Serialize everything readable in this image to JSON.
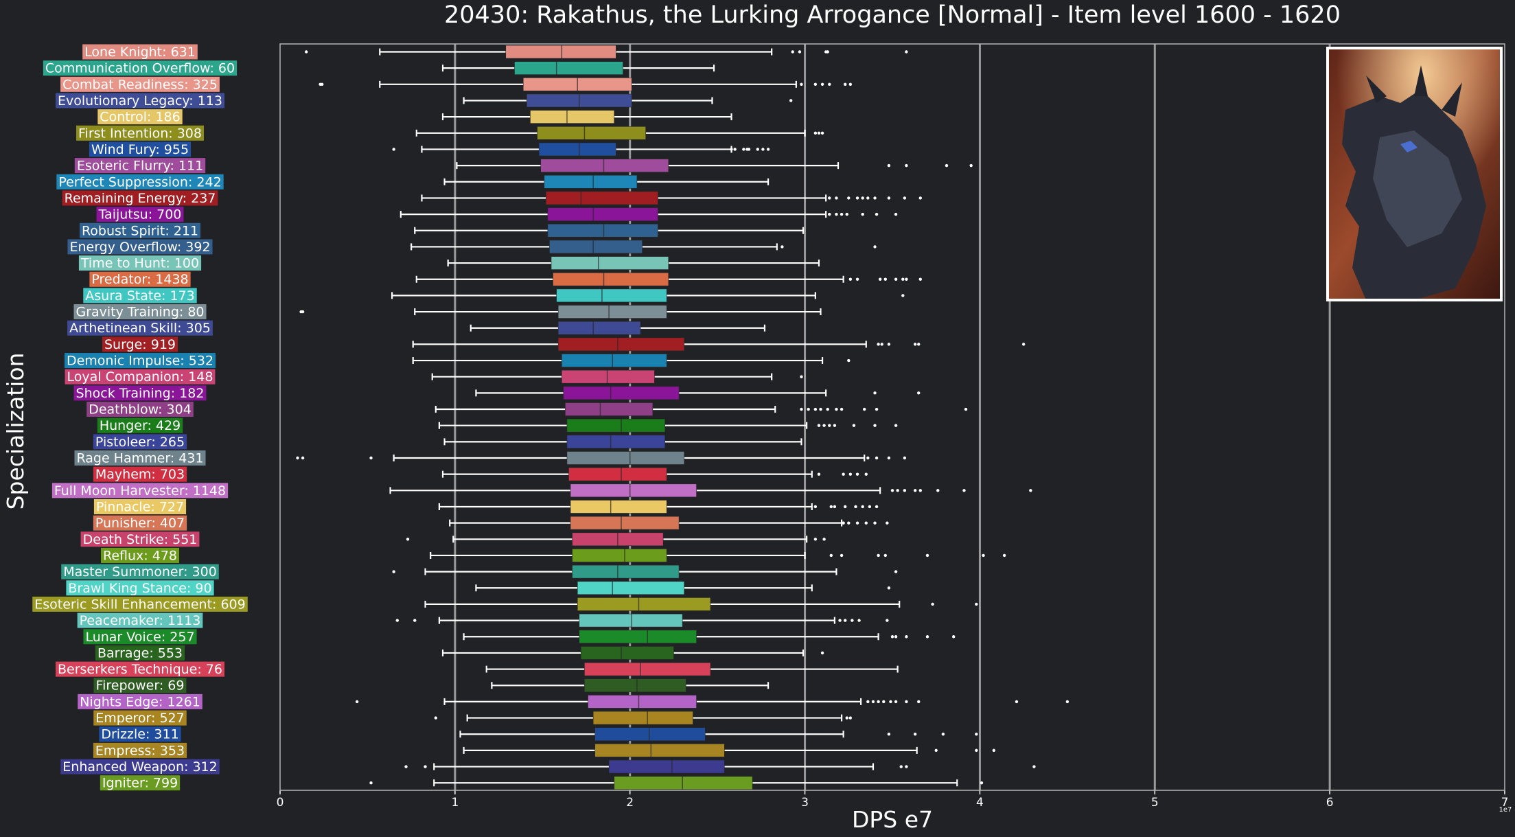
{
  "chart_data": {
    "type": "boxplot",
    "title": "20430: Rakathus, the Lurking Arrogance [Normal] - Item level 1600 - 1620",
    "xlabel": "DPS e7",
    "ylabel": "Specialization",
    "x_tick_labels": [
      "0",
      "1",
      "2",
      "3",
      "4",
      "5",
      "6",
      "7"
    ],
    "x_offset_text": "1e7",
    "xlim": [
      0,
      7
    ],
    "orientation": "horizontal",
    "grid": "vertical lines at 1, 2, 3, 4, 5, 6",
    "image": "boss portrait (dragon) in top-right corner",
    "series": [
      {
        "label": "Lone Knight: 631",
        "color": "#e28b80",
        "whislo": 0.57,
        "q1": 1.29,
        "med": 1.61,
        "q3": 1.92,
        "whishi": 2.81,
        "fliers": [
          0.15,
          2.93,
          2.97,
          3.12,
          3.13,
          3.58
        ]
      },
      {
        "label": "Communication Overflow: 60",
        "color": "#2ca58d",
        "whislo": 0.93,
        "q1": 1.34,
        "med": 1.58,
        "q3": 1.96,
        "whishi": 2.48,
        "fliers": []
      },
      {
        "label": "Combat Readiness: 325",
        "color": "#e8958a",
        "whislo": 0.57,
        "q1": 1.39,
        "med": 1.7,
        "q3": 2.01,
        "whishi": 2.95,
        "fliers": [
          0.23,
          0.24,
          2.98,
          3.06,
          3.1,
          3.14,
          3.23,
          3.26
        ]
      },
      {
        "label": "Evolutionary Legacy: 113",
        "color": "#3f4d96",
        "whislo": 1.05,
        "q1": 1.41,
        "med": 1.71,
        "q3": 2.01,
        "whishi": 2.47,
        "fliers": [
          2.92
        ]
      },
      {
        "label": "Control: 186",
        "color": "#e6c767",
        "whislo": 0.93,
        "q1": 1.43,
        "med": 1.64,
        "q3": 1.91,
        "whishi": 2.58,
        "fliers": []
      },
      {
        "label": "First Intention: 308",
        "color": "#8e8e1c",
        "whislo": 0.78,
        "q1": 1.47,
        "med": 1.74,
        "q3": 2.09,
        "whishi": 3.0,
        "fliers": [
          3.06,
          3.08,
          3.1
        ]
      },
      {
        "label": "Wind Fury: 955",
        "color": "#1f4f9e",
        "whislo": 0.81,
        "q1": 1.48,
        "med": 1.71,
        "q3": 1.92,
        "whishi": 2.58,
        "fliers": [
          0.65,
          2.58,
          2.6,
          2.65,
          2.67,
          2.68,
          2.73,
          2.76,
          2.79
        ]
      },
      {
        "label": "Esoteric Flurry: 111",
        "color": "#a04c9c",
        "whislo": 1.01,
        "q1": 1.49,
        "med": 1.85,
        "q3": 2.22,
        "whishi": 3.19,
        "fliers": [
          3.48,
          3.58,
          3.81,
          3.95
        ]
      },
      {
        "label": "Perfect Suppression: 242",
        "color": "#1e87b8",
        "whislo": 0.94,
        "q1": 1.51,
        "med": 1.79,
        "q3": 2.04,
        "whishi": 2.79,
        "fliers": []
      },
      {
        "label": "Remaining Energy: 237",
        "color": "#a01e22",
        "whislo": 0.81,
        "q1": 1.52,
        "med": 1.72,
        "q3": 2.16,
        "whishi": 3.12,
        "fliers": [
          3.14,
          3.18,
          3.25,
          3.3,
          3.33,
          3.36,
          3.4,
          3.48,
          3.57,
          3.66
        ]
      },
      {
        "label": "Taijutsu: 700",
        "color": "#8b1598",
        "whislo": 0.69,
        "q1": 1.53,
        "med": 1.79,
        "q3": 2.16,
        "whishi": 3.12,
        "fliers": [
          3.14,
          3.18,
          3.21,
          3.24,
          3.33,
          3.41,
          3.52
        ]
      },
      {
        "label": "Robust Spirit: 211",
        "color": "#2f6191",
        "whislo": 0.77,
        "q1": 1.53,
        "med": 1.85,
        "q3": 2.16,
        "whishi": 2.99,
        "fliers": []
      },
      {
        "label": "Energy Overflow: 392",
        "color": "#345e8c",
        "whislo": 0.75,
        "q1": 1.54,
        "med": 1.79,
        "q3": 2.07,
        "whishi": 2.84,
        "fliers": [
          2.87,
          3.4
        ]
      },
      {
        "label": "Time to Hunt: 100",
        "color": "#78c5b8",
        "whislo": 0.96,
        "q1": 1.55,
        "med": 1.82,
        "q3": 2.22,
        "whishi": 3.08,
        "fliers": []
      },
      {
        "label": "Predator: 1438",
        "color": "#d96b45",
        "whislo": 0.78,
        "q1": 1.56,
        "med": 1.85,
        "q3": 2.22,
        "whishi": 3.22,
        "fliers": [
          3.26,
          3.3,
          3.43,
          3.46,
          3.52,
          3.56,
          3.58,
          3.66
        ]
      },
      {
        "label": "Asura State: 173",
        "color": "#41c7c1",
        "whislo": 0.64,
        "q1": 1.58,
        "med": 1.84,
        "q3": 2.21,
        "whishi": 3.06,
        "fliers": [
          3.56
        ]
      },
      {
        "label": "Gravity Training: 80",
        "color": "#7d8f96",
        "whislo": 0.77,
        "q1": 1.59,
        "med": 1.88,
        "q3": 2.21,
        "whishi": 3.09,
        "fliers": [
          0.12,
          0.13
        ]
      },
      {
        "label": "Arthetinean Skill: 305",
        "color": "#3e4b94",
        "whislo": 1.09,
        "q1": 1.59,
        "med": 1.79,
        "q3": 2.06,
        "whishi": 2.77,
        "fliers": []
      },
      {
        "label": "Surge: 919",
        "color": "#a11f23",
        "whislo": 0.76,
        "q1": 1.59,
        "med": 1.93,
        "q3": 2.31,
        "whishi": 3.35,
        "fliers": [
          3.42,
          3.44,
          3.48,
          3.63,
          3.65,
          4.25
        ]
      },
      {
        "label": "Demonic Impulse: 532",
        "color": "#1a82b0",
        "whislo": 0.76,
        "q1": 1.61,
        "med": 1.9,
        "q3": 2.21,
        "whishi": 3.1,
        "fliers": [
          3.25
        ]
      },
      {
        "label": "Loyal Companion: 148",
        "color": "#c94473",
        "whislo": 0.87,
        "q1": 1.61,
        "med": 1.87,
        "q3": 2.14,
        "whishi": 2.81,
        "fliers": [
          2.98
        ]
      },
      {
        "label": "Shock Training: 182",
        "color": "#8b1598",
        "whislo": 1.12,
        "q1": 1.62,
        "med": 1.89,
        "q3": 2.28,
        "whishi": 3.12,
        "fliers": [
          3.4,
          3.65
        ]
      },
      {
        "label": "Deathblow: 304",
        "color": "#8f3f85",
        "whislo": 0.89,
        "q1": 1.63,
        "med": 1.83,
        "q3": 2.13,
        "whishi": 2.83,
        "fliers": [
          2.98,
          3.02,
          3.06,
          3.09,
          3.13,
          3.18,
          3.21,
          3.34,
          3.41,
          3.92
        ]
      },
      {
        "label": "Hunger: 429",
        "color": "#1a7d1a",
        "whislo": 0.91,
        "q1": 1.64,
        "med": 1.95,
        "q3": 2.2,
        "whishi": 3.01,
        "fliers": [
          3.08,
          3.11,
          3.14,
          3.17,
          3.28,
          3.4,
          3.52
        ]
      },
      {
        "label": "Pistoleer: 265",
        "color": "#3a4499",
        "whislo": 0.94,
        "q1": 1.64,
        "med": 1.89,
        "q3": 2.2,
        "whishi": 2.98,
        "fliers": []
      },
      {
        "label": "Rage Hammer: 431",
        "color": "#6f838c",
        "whislo": 0.65,
        "q1": 1.64,
        "med": 2.0,
        "q3": 2.31,
        "whishi": 3.34,
        "fliers": [
          0.1,
          0.13,
          0.52,
          3.36,
          3.41,
          3.48,
          3.57
        ]
      },
      {
        "label": "Mayhem: 703",
        "color": "#d12f41",
        "whislo": 0.93,
        "q1": 1.65,
        "med": 1.95,
        "q3": 2.21,
        "whishi": 3.04,
        "fliers": [
          3.08,
          3.22,
          3.26,
          3.3,
          3.35
        ]
      },
      {
        "label": "Full Moon Harvester: 1148",
        "color": "#c06fc5",
        "whislo": 0.63,
        "q1": 1.66,
        "med": 2.0,
        "q3": 2.38,
        "whishi": 3.43,
        "fliers": [
          3.5,
          3.53,
          3.57,
          3.63,
          3.66,
          3.76,
          3.91,
          4.29
        ]
      },
      {
        "label": "Pinnacle: 727",
        "color": "#eac965",
        "whislo": 0.91,
        "q1": 1.66,
        "med": 1.89,
        "q3": 2.21,
        "whishi": 3.04,
        "fliers": [
          3.06,
          3.15,
          3.17,
          3.23,
          3.29,
          3.33,
          3.37,
          3.41
        ]
      },
      {
        "label": "Punisher: 407",
        "color": "#d67656",
        "whislo": 0.97,
        "q1": 1.66,
        "med": 1.95,
        "q3": 2.28,
        "whishi": 3.21,
        "fliers": [
          3.22,
          3.25,
          3.3,
          3.35,
          3.4,
          3.47
        ]
      },
      {
        "label": "Death Strike: 551",
        "color": "#c8436c",
        "whislo": 0.99,
        "q1": 1.67,
        "med": 1.93,
        "q3": 2.19,
        "whishi": 3.01,
        "fliers": [
          0.73,
          3.06,
          3.11
        ]
      },
      {
        "label": "Reflux: 478",
        "color": "#6b9c1b",
        "whislo": 0.86,
        "q1": 1.67,
        "med": 1.97,
        "q3": 2.21,
        "whishi": 3.0,
        "fliers": [
          3.15,
          3.21,
          3.42,
          3.46,
          3.7,
          4.02,
          4.14
        ]
      },
      {
        "label": "Master Summoner: 300",
        "color": "#2f9b88",
        "whislo": 0.83,
        "q1": 1.67,
        "med": 1.93,
        "q3": 2.28,
        "whishi": 3.18,
        "fliers": [
          0.65,
          3.52
        ]
      },
      {
        "label": "Brawl King Stance: 90",
        "color": "#4fd4c6",
        "whislo": 1.12,
        "q1": 1.7,
        "med": 1.9,
        "q3": 2.31,
        "whishi": 3.04,
        "fliers": [
          3.48
        ]
      },
      {
        "label": "Esoteric Skill Enhancement: 609",
        "color": "#9b9a21",
        "whislo": 0.83,
        "q1": 1.7,
        "med": 2.05,
        "q3": 2.46,
        "whishi": 3.54,
        "fliers": [
          3.73,
          3.98
        ]
      },
      {
        "label": "Peacemaker: 1113",
        "color": "#63c5bb",
        "whislo": 0.91,
        "q1": 1.71,
        "med": 2.01,
        "q3": 2.3,
        "whishi": 3.17,
        "fliers": [
          0.67,
          0.77,
          3.2,
          3.23,
          3.27,
          3.31,
          3.47
        ]
      },
      {
        "label": "Lunar Voice: 257",
        "color": "#1b8a29",
        "whislo": 1.05,
        "q1": 1.71,
        "med": 2.1,
        "q3": 2.38,
        "whishi": 3.42,
        "fliers": [
          3.5,
          3.52,
          3.58,
          3.7,
          3.85
        ]
      },
      {
        "label": "Barrage: 553",
        "color": "#2a651f",
        "whislo": 0.93,
        "q1": 1.72,
        "med": 1.95,
        "q3": 2.25,
        "whishi": 2.99,
        "fliers": [
          3.1
        ]
      },
      {
        "label": "Berserkers Technique: 76",
        "color": "#d8415a",
        "whislo": 1.18,
        "q1": 1.74,
        "med": 2.06,
        "q3": 2.46,
        "whishi": 3.53,
        "fliers": []
      },
      {
        "label": "Firepower: 69",
        "color": "#2e5c23",
        "whislo": 1.21,
        "q1": 1.74,
        "med": 2.04,
        "q3": 2.32,
        "whishi": 2.79,
        "fliers": []
      },
      {
        "label": "Nights Edge: 1261",
        "color": "#b463c7",
        "whislo": 0.94,
        "q1": 1.76,
        "med": 2.05,
        "q3": 2.38,
        "whishi": 3.32,
        "fliers": [
          0.44,
          3.36,
          3.39,
          3.42,
          3.45,
          3.49,
          3.52,
          3.58,
          3.65,
          4.21,
          4.5
        ]
      },
      {
        "label": "Emperor: 527",
        "color": "#a88521",
        "whislo": 1.07,
        "q1": 1.79,
        "med": 2.1,
        "q3": 2.36,
        "whishi": 3.21,
        "fliers": [
          0.89,
          3.24,
          3.26
        ]
      },
      {
        "label": "Drizzle: 311",
        "color": "#1f4d9c",
        "whislo": 1.03,
        "q1": 1.8,
        "med": 2.11,
        "q3": 2.43,
        "whishi": 3.22,
        "fliers": [
          3.48,
          3.63,
          3.79,
          3.98
        ]
      },
      {
        "label": "Empress: 353",
        "color": "#a68522",
        "whislo": 1.05,
        "q1": 1.8,
        "med": 2.12,
        "q3": 2.54,
        "whishi": 3.64,
        "fliers": [
          3.75,
          3.98,
          4.08
        ]
      },
      {
        "label": "Enhanced Weapon: 312",
        "color": "#3c3b8f",
        "whislo": 0.88,
        "q1": 1.88,
        "med": 2.24,
        "q3": 2.54,
        "whishi": 3.39,
        "fliers": [
          0.72,
          0.83,
          3.55,
          3.58,
          4.31
        ]
      },
      {
        "label": "Igniter: 799",
        "color": "#6a9c22",
        "whislo": 0.88,
        "q1": 1.91,
        "med": 2.3,
        "q3": 2.7,
        "whishi": 3.87,
        "fliers": [
          0.52,
          4.01
        ]
      }
    ]
  }
}
